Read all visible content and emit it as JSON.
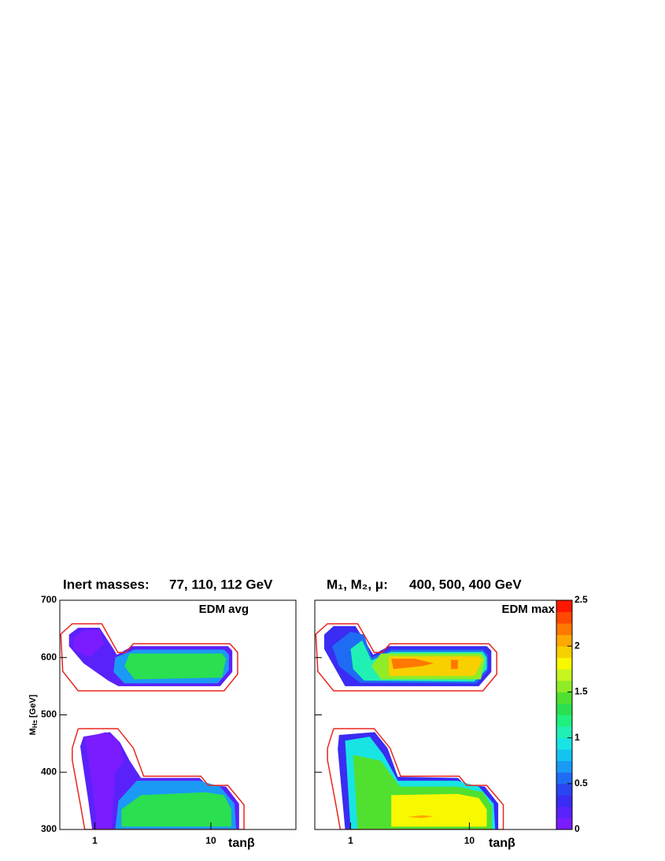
{
  "chart_data": [
    {
      "type": "contour",
      "title": [
        "Inert masses:",
        "77, 110, 112 GeV"
      ],
      "annotation": "EDM avg",
      "xlabel": "tanβ",
      "ylabel": {
        "main": "M",
        "sub": "H±",
        "unit": "[GeV]"
      },
      "xscale": "log",
      "xlim": [
        0.5,
        54
      ],
      "ylim": [
        300,
        700
      ],
      "xticks": [
        1,
        10
      ],
      "yticks": [
        300,
        400,
        500,
        600,
        700
      ],
      "show_ytick_labels": true,
      "boundary_color": "#e8261e",
      "boundaries": [
        {
          "x": [
            0.51,
            0.64,
            1.15,
            1.58,
            1.84,
            2.15,
            14.6,
            17,
            17,
            13,
            0.72,
            0.53,
            0.51
          ],
          "y": [
            641,
            659,
            659,
            609,
            609,
            624,
            624,
            609,
            571,
            542,
            542,
            576,
            641
          ]
        },
        {
          "x": [
            0.72,
            1.58,
            2.15,
            2.64,
            8.2,
            9.5,
            14,
            19.3,
            19.3,
            0.82,
            0.75,
            0.64,
            0.64,
            0.72
          ],
          "y": [
            476,
            476,
            442,
            393,
            393,
            377,
            377,
            343,
            300,
            300,
            345,
            421,
            442,
            476
          ]
        }
      ],
      "bands": [
        {
          "level": 0.2,
          "x": [
            0.6,
            0.72,
            1.1,
            1.45,
            1.55,
            2.1,
            14,
            15.3,
            15.3,
            12,
            1.6,
            1.3,
            0.8,
            0.6
          ],
          "y": [
            640,
            652,
            652,
            615,
            605,
            620,
            620,
            612,
            575,
            550,
            550,
            560,
            590,
            620
          ]
        },
        {
          "level": 0.1,
          "x": [
            0.65,
            0.8,
            1.1,
            1.2,
            0.9,
            0.65
          ],
          "y": [
            635,
            648,
            648,
            625,
            600,
            615
          ]
        },
        {
          "level": 0.7,
          "x": [
            1.5,
            2.2,
            13,
            14.3,
            14.3,
            11.5,
            1.8,
            1.45
          ],
          "y": [
            600,
            614,
            614,
            605,
            578,
            555,
            555,
            575
          ]
        },
        {
          "level": 1.3,
          "x": [
            2.0,
            12.5,
            13.5,
            12.5,
            2.2,
            1.8
          ],
          "y": [
            607,
            607,
            598,
            565,
            562,
            585
          ]
        },
        {
          "level": 0.2,
          "x": [
            0.8,
            1.35,
            1.65,
            2.0,
            2.5,
            8,
            9.2,
            13.5,
            17.5,
            17.5,
            0.95,
            0.88,
            0.78,
            0.75
          ],
          "y": [
            462,
            470,
            452,
            420,
            390,
            390,
            378,
            375,
            345,
            300,
            300,
            350,
            420,
            445
          ]
        },
        {
          "level": 0.1,
          "x": [
            0.82,
            1.25,
            1.6,
            1.8,
            1.5,
            1.4,
            1.05,
            0.95,
            0.85
          ],
          "y": [
            460,
            470,
            455,
            420,
            400,
            300,
            300,
            380,
            440
          ]
        },
        {
          "level": 0.7,
          "x": [
            1.6,
            2.3,
            8,
            12,
            16,
            16.5,
            1.5
          ],
          "y": [
            350,
            385,
            385,
            375,
            345,
            300,
            300
          ]
        },
        {
          "level": 1.3,
          "x": [
            1.7,
            2.5,
            9,
            13,
            15,
            15,
            1.7
          ],
          "y": [
            335,
            360,
            365,
            360,
            335,
            305,
            305
          ]
        }
      ]
    },
    {
      "type": "contour",
      "title": [
        "M₁, M₂, μ:",
        "400, 500, 400 GeV"
      ],
      "annotation": "EDM max",
      "xlabel": "tanβ",
      "xscale": "log",
      "xlim": [
        0.5,
        54
      ],
      "ylim": [
        300,
        700
      ],
      "xticks": [
        1,
        10
      ],
      "yticks": [
        300,
        400,
        500,
        600,
        700
      ],
      "show_ytick_labels": false,
      "boundary_color": "#e8261e",
      "boundaries": [
        {
          "x": [
            0.51,
            0.64,
            1.15,
            1.58,
            1.84,
            2.15,
            14.6,
            17,
            17,
            13,
            0.72,
            0.53,
            0.51
          ],
          "y": [
            641,
            659,
            659,
            609,
            609,
            624,
            624,
            609,
            571,
            542,
            542,
            576,
            641
          ]
        },
        {
          "x": [
            0.72,
            1.58,
            2.15,
            2.64,
            8.2,
            9.5,
            14,
            19.3,
            19.3,
            0.82,
            0.75,
            0.64,
            0.64,
            0.72
          ],
          "y": [
            476,
            476,
            442,
            393,
            393,
            377,
            377,
            343,
            300,
            300,
            345,
            421,
            442,
            476
          ]
        }
      ],
      "bands": [
        {
          "level": 0.3,
          "x": [
            0.6,
            0.72,
            1.1,
            1.45,
            1.55,
            2.1,
            14,
            15.3,
            15.3,
            12,
            0.9,
            0.6
          ],
          "y": [
            640,
            655,
            655,
            615,
            605,
            620,
            620,
            612,
            575,
            550,
            550,
            615
          ]
        },
        {
          "level": 0.6,
          "x": [
            0.7,
            1.0,
            1.3,
            1.5,
            2.2,
            13,
            14.3,
            14.3,
            11.5,
            1.2,
            0.8
          ],
          "y": [
            620,
            645,
            640,
            600,
            614,
            614,
            605,
            578,
            555,
            556,
            585
          ]
        },
        {
          "level": 1.0,
          "x": [
            1.0,
            1.25,
            1.5,
            2.2,
            13,
            14,
            14,
            11,
            1.3,
            1.05
          ],
          "y": [
            615,
            630,
            595,
            610,
            610,
            600,
            580,
            558,
            560,
            580
          ]
        },
        {
          "level": 1.5,
          "x": [
            1.8,
            12.5,
            13.5,
            12.5,
            1.8,
            1.5
          ],
          "y": [
            607,
            607,
            598,
            562,
            562,
            585
          ]
        },
        {
          "level": 1.9,
          "x": [
            2.1,
            12,
            12.8,
            11,
            2.1
          ],
          "y": [
            602,
            602,
            595,
            568,
            568
          ]
        },
        {
          "level": 2.2,
          "x": [
            2.2,
            3.5,
            5,
            4,
            2.3
          ],
          "y": [
            598,
            598,
            590,
            585,
            580
          ]
        },
        {
          "level": 2.2,
          "x": [
            7,
            8,
            8,
            7
          ],
          "y": [
            596,
            596,
            580,
            580
          ]
        },
        {
          "level": 0.3,
          "x": [
            0.8,
            1.6,
            2.05,
            2.5,
            8,
            9.2,
            13.5,
            17.5,
            17.5,
            0.9,
            0.78
          ],
          "y": [
            465,
            470,
            442,
            392,
            390,
            378,
            375,
            345,
            300,
            300,
            440
          ]
        },
        {
          "level": 0.9,
          "x": [
            0.9,
            1.45,
            1.9,
            2.5,
            8,
            12,
            16,
            16.5,
            1.0
          ],
          "y": [
            455,
            462,
            430,
            385,
            385,
            375,
            345,
            300,
            300
          ]
        },
        {
          "level": 1.4,
          "x": [
            1.05,
            1.8,
            2.6,
            8,
            13,
            15.5,
            15.5,
            1.15
          ],
          "y": [
            430,
            420,
            375,
            375,
            365,
            340,
            300,
            300
          ]
        },
        {
          "level": 1.8,
          "x": [
            2.2,
            8,
            12,
            14,
            14,
            2.2
          ],
          "y": [
            360,
            362,
            355,
            335,
            305,
            305
          ]
        },
        {
          "level": 2.1,
          "x": [
            3,
            4,
            5,
            4
          ],
          "y": [
            322,
            325,
            323,
            320
          ]
        }
      ],
      "colorbar": {
        "zlim": [
          0,
          2.5
        ],
        "zticks": [
          0,
          0.5,
          1,
          1.5,
          2,
          2.5
        ],
        "palette": [
          "#7a1cff",
          "#5a22fa",
          "#3a2cf2",
          "#2a46f0",
          "#1f6cf4",
          "#1a9af4",
          "#14c4f0",
          "#18e4e4",
          "#20f0b4",
          "#20f080",
          "#2ae050",
          "#50e030",
          "#90ec28",
          "#c8f420",
          "#f8f800",
          "#f8d000",
          "#ffa800",
          "#ff7800",
          "#ff4800",
          "#ff1800"
        ]
      }
    }
  ]
}
